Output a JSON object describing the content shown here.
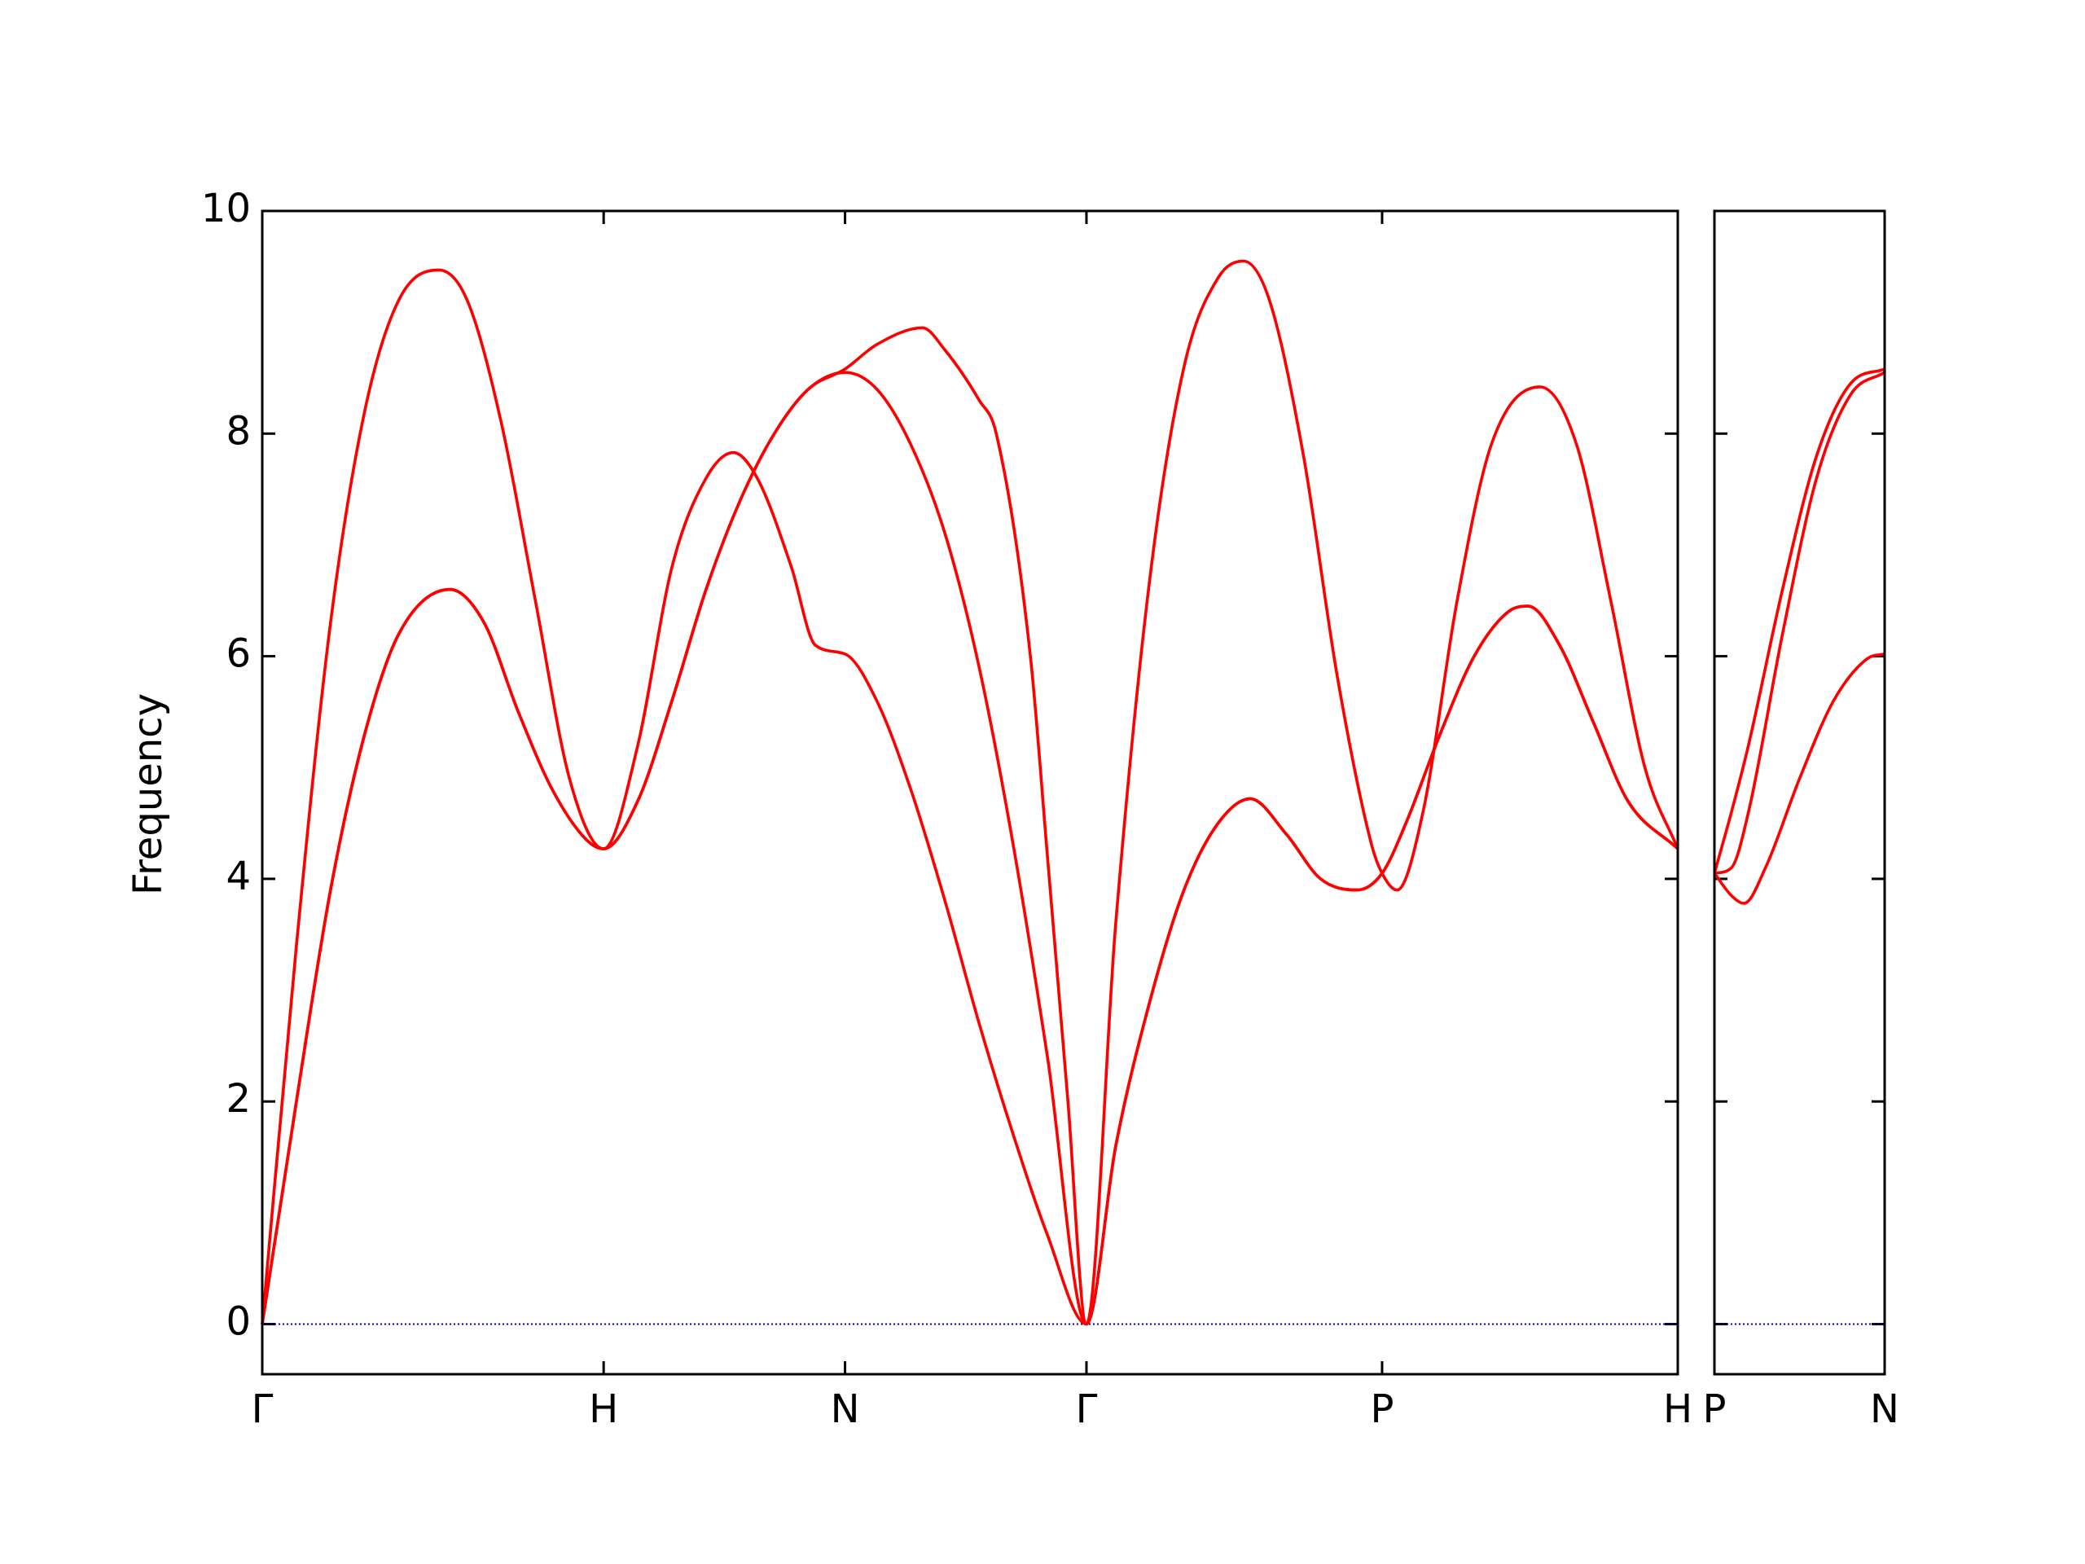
{
  "chart_data": [
    {
      "type": "line",
      "ylabel": "Frequency",
      "xlim": [
        0,
        4.1463
      ],
      "ylim": [
        -0.45,
        10
      ],
      "xticks": [
        {
          "value": 0,
          "label": "Γ"
        },
        {
          "value": 1,
          "label": "H"
        },
        {
          "value": 1.7071,
          "label": "N"
        },
        {
          "value": 2.4142,
          "label": "Γ"
        },
        {
          "value": 3.2802,
          "label": "P"
        },
        {
          "value": 4.1463,
          "label": "H"
        }
      ],
      "yticks": [
        0,
        2,
        4,
        6,
        8,
        10
      ],
      "zero_line": {
        "value": 0,
        "color": "#0000cc"
      },
      "series": [
        {
          "color": "#ff0000",
          "x": [
            0,
            0.1,
            0.2,
            0.3,
            0.4,
            0.55,
            0.65,
            0.75,
            0.85,
            0.95,
            1.0,
            1.1,
            1.2,
            1.3,
            1.38,
            1.45,
            1.55,
            1.62,
            1.7071,
            1.8,
            1.9,
            2.0,
            2.1,
            2.2,
            2.3,
            2.4142,
            2.5,
            2.6,
            2.7,
            2.8,
            2.894,
            3.0,
            3.1,
            3.207,
            3.2802,
            3.35,
            3.45,
            3.55,
            3.65,
            3.708,
            3.8,
            3.9,
            4.0,
            4.1463
          ],
          "values": [
            0,
            2.0,
            3.9,
            5.3,
            6.2,
            6.6,
            6.3,
            5.5,
            4.8,
            4.35,
            4.27,
            5.2,
            6.8,
            7.6,
            7.83,
            7.6,
            6.8,
            6.1,
            6.02,
            5.6,
            4.8,
            3.8,
            2.7,
            1.7,
            0.8,
            0,
            1.6,
            2.9,
            3.9,
            4.5,
            4.72,
            4.4,
            4.0,
            3.9,
            4.05,
            4.5,
            5.3,
            6.0,
            6.4,
            6.45,
            6.1,
            5.4,
            4.7,
            4.27
          ]
        },
        {
          "color": "#ff0000",
          "x": [
            0,
            0.1,
            0.2,
            0.3,
            0.4,
            0.55,
            0.65,
            0.75,
            0.85,
            0.95,
            1.0,
            1.1,
            1.2,
            1.3,
            1.4,
            1.5,
            1.6,
            1.7071,
            1.8,
            1.9,
            2.0,
            2.1,
            2.2,
            2.3,
            2.4142,
            2.5,
            2.6,
            2.7,
            2.8,
            2.894,
            3.0,
            3.1,
            3.207,
            3.2802,
            3.35,
            3.45,
            3.55,
            3.65,
            3.708,
            3.8,
            3.9,
            4.0,
            4.1463
          ],
          "values": [
            0,
            2.0,
            3.9,
            5.3,
            6.2,
            6.6,
            6.3,
            5.5,
            4.8,
            4.35,
            4.27,
            4.7,
            5.6,
            6.6,
            7.4,
            8.0,
            8.4,
            8.55,
            8.4,
            7.9,
            7.1,
            5.9,
            4.3,
            2.4,
            0,
            1.6,
            2.9,
            3.9,
            4.5,
            4.72,
            4.4,
            4.0,
            3.9,
            4.05,
            4.5,
            5.3,
            6.0,
            6.4,
            6.45,
            6.1,
            5.4,
            4.7,
            4.27
          ]
        },
        {
          "color": "#ff0000",
          "x": [
            0,
            0.1,
            0.2,
            0.3,
            0.4,
            0.517,
            0.6,
            0.7,
            0.8,
            0.9,
            1.0,
            1.1,
            1.2,
            1.3,
            1.4,
            1.5,
            1.6,
            1.7071,
            1.8,
            1.934,
            2.0,
            2.1,
            2.15,
            2.25,
            2.3,
            2.36,
            2.4142,
            2.5,
            2.6,
            2.7,
            2.8,
            2.874,
            2.95,
            3.05,
            3.15,
            3.25,
            3.2802,
            3.324,
            3.4,
            3.5,
            3.6,
            3.743,
            3.85,
            3.95,
            4.05,
            4.1463
          ],
          "values": [
            0,
            3.4,
            6.3,
            8.2,
            9.2,
            9.47,
            9.2,
            8.1,
            6.5,
            4.9,
            4.27,
            4.7,
            5.6,
            6.6,
            7.4,
            8.0,
            8.4,
            8.58,
            8.8,
            8.95,
            8.75,
            8.3,
            8.0,
            6.0,
            4.2,
            2.0,
            0,
            3.6,
            6.7,
            8.6,
            9.4,
            9.55,
            9.2,
            7.8,
            5.8,
            4.3,
            4.05,
            3.9,
            4.6,
            6.5,
            7.9,
            8.42,
            7.9,
            6.5,
            5.0,
            4.27
          ]
        }
      ]
    },
    {
      "type": "line",
      "xlim": [
        0,
        0.5
      ],
      "ylim": [
        -0.45,
        10
      ],
      "xticks": [
        {
          "value": 0,
          "label": "P"
        },
        {
          "value": 0.5,
          "label": "N"
        }
      ],
      "yticks": [
        0,
        2,
        4,
        6,
        8,
        10
      ],
      "zero_line": {
        "value": 0,
        "color": "#0000cc"
      },
      "series": [
        {
          "color": "#ff0000",
          "x": [
            0,
            0.05,
            0.087,
            0.15,
            0.25,
            0.35,
            0.45,
            0.5
          ],
          "values": [
            4.05,
            3.85,
            3.78,
            4.1,
            4.9,
            5.6,
            5.98,
            6.02
          ]
        },
        {
          "color": "#ff0000",
          "x": [
            0,
            0.05,
            0.1,
            0.2,
            0.3,
            0.4,
            0.5
          ],
          "values": [
            4.05,
            4.1,
            4.6,
            6.2,
            7.6,
            8.35,
            8.55
          ]
        },
        {
          "color": "#ff0000",
          "x": [
            0,
            0.05,
            0.1,
            0.2,
            0.3,
            0.4,
            0.5
          ],
          "values": [
            4.05,
            4.6,
            5.2,
            6.6,
            7.8,
            8.45,
            8.58
          ]
        }
      ]
    }
  ]
}
